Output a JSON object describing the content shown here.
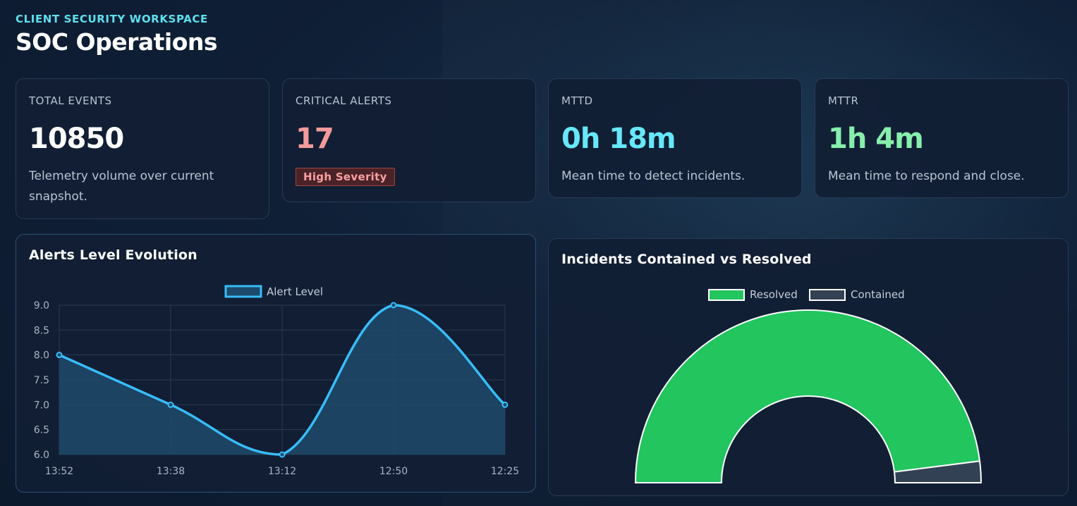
{
  "header": {
    "eyebrow": "CLIENT SECURITY WORKSPACE",
    "title": "SOC Operations"
  },
  "kpis": [
    {
      "label": "TOTAL EVENTS",
      "value": "10850",
      "color": "#ffffff",
      "desc_line1": "Telemetry volume over current",
      "desc_line2": "snapshot."
    },
    {
      "label": "CRITICAL ALERTS",
      "value": "17",
      "color": "#f39a9a",
      "badge": "High Severity"
    },
    {
      "label": "MTTD",
      "value": "0h 18m",
      "color": "#67e8f9",
      "desc_line1": "Mean time to detect incidents."
    },
    {
      "label": "MTTR",
      "value": "1h 4m",
      "color": "#86efac",
      "desc_line1": "Mean time to respond and close."
    }
  ],
  "line_chart": {
    "title": "Alerts Level Evolution",
    "legend_label": "Alert Level",
    "line_color": "#38bdf8",
    "fill_color": "#1e4a6b"
  },
  "gauge_chart": {
    "title": "Incidents Contained vs Resolved",
    "legend_resolved": "Resolved",
    "legend_contained": "Contained",
    "resolved_color": "#22c55e",
    "contained_color": "#334155"
  },
  "chart_data": [
    {
      "type": "line",
      "title": "Alerts Level Evolution",
      "x": [
        "13:52",
        "13:38",
        "13:12",
        "12:50",
        "12:25"
      ],
      "series": [
        {
          "name": "Alert Level",
          "values": [
            8.0,
            7.0,
            6.0,
            9.0,
            7.0
          ]
        }
      ],
      "ylim": [
        6.0,
        9.0
      ],
      "yticks": [
        "9.0",
        "8.5",
        "8.0",
        "7.5",
        "7.0",
        "6.5",
        "6.0"
      ],
      "legend": "top",
      "grid": true
    },
    {
      "type": "pie",
      "title": "Incidents Contained vs Resolved",
      "categories": [
        "Resolved",
        "Contained"
      ],
      "values": [
        96,
        4
      ],
      "legend": "top"
    }
  ]
}
